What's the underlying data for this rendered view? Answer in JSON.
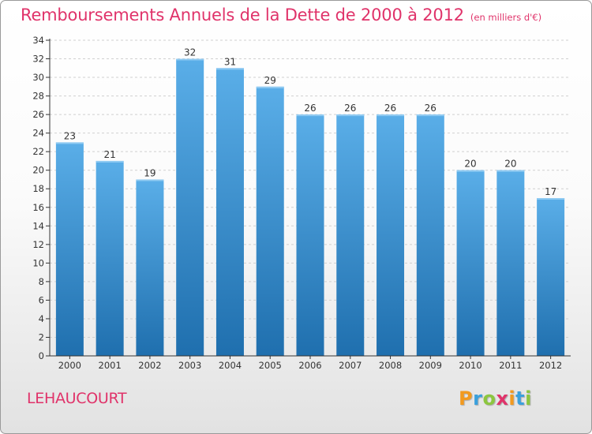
{
  "header": {
    "title": "Remboursements Annuels de la Dette de 2000 à 2012",
    "unit": "(en milliers d'€)"
  },
  "commune": "LEHAUCOURT",
  "logo": {
    "text": "Proxiti",
    "letters": [
      {
        "char": "P",
        "color": "#f29a1f"
      },
      {
        "char": "r",
        "color": "#3aa0dc"
      },
      {
        "char": "o",
        "color": "#8cc63f"
      },
      {
        "char": "x",
        "color": "#e0336a"
      },
      {
        "char": "i",
        "color": "#f29a1f"
      },
      {
        "char": "t",
        "color": "#3aa0dc"
      },
      {
        "char": "i",
        "color": "#8cc63f"
      }
    ]
  },
  "colors": {
    "accent": "#e0336a",
    "bar_top": "#5aaee8",
    "bar_bottom": "#1f6fae",
    "grid": "#d0d0d0",
    "axis": "#333333"
  },
  "chart_data": {
    "type": "bar",
    "categories": [
      "2000",
      "2001",
      "2002",
      "2003",
      "2004",
      "2005",
      "2006",
      "2007",
      "2008",
      "2009",
      "2010",
      "2011",
      "2012"
    ],
    "values": [
      23,
      21,
      19,
      32,
      31,
      29,
      26,
      26,
      26,
      26,
      20,
      20,
      17
    ],
    "title": "Remboursements Annuels de la Dette de 2000 à 2012",
    "xlabel": "",
    "ylabel": "",
    "ylim": [
      0,
      34
    ],
    "yticks": [
      0,
      2,
      4,
      6,
      8,
      10,
      12,
      14,
      16,
      18,
      20,
      22,
      24,
      26,
      28,
      30,
      32,
      34
    ],
    "grid": true,
    "data_labels": true
  }
}
